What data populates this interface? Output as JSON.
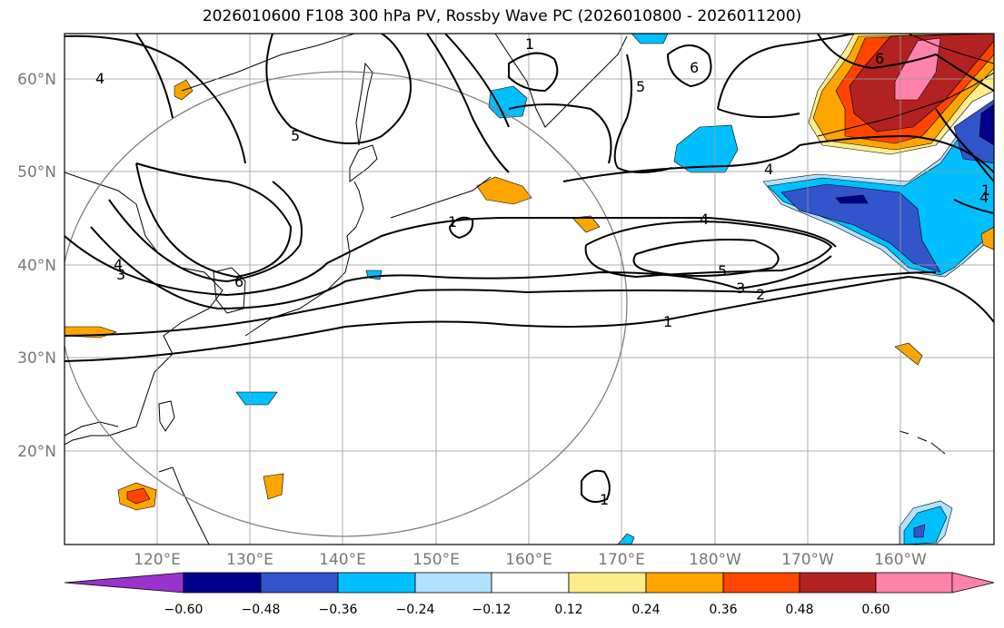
{
  "title": "2026010600 F108 300 hPa PV, Rossby Wave PC (2026010800 - 2026011200)",
  "map": {
    "lon_range": [
      110,
      210
    ],
    "lat_range": [
      10,
      65
    ],
    "x_ticks": [
      "120°E",
      "130°E",
      "140°E",
      "150°E",
      "160°E",
      "170°E",
      "180°W",
      "170°W",
      "160°W"
    ],
    "y_ticks": [
      "20°N",
      "30°N",
      "40°N",
      "50°N",
      "60°N"
    ],
    "grid": true,
    "contour_labels": [
      "4",
      "1",
      "5",
      "6",
      "1",
      "5",
      "4",
      "6",
      "4",
      "5",
      "3",
      "2",
      "1",
      "1",
      "4",
      "3",
      "6",
      "1",
      "4"
    ],
    "shading_colors": {
      "purple": "#9933cc",
      "navy": "#00008b",
      "royal": "#3355cc",
      "deepsky": "#00bfff",
      "lightsky": "#b0e2ff",
      "white": "#ffffff",
      "lightyellow": "#ffec8b",
      "orange": "#ffa500",
      "orangered": "#ff4500",
      "firebrick": "#b22222",
      "pink": "#ff82ab"
    }
  },
  "colorbar": {
    "labels": [
      "−0.60",
      "−0.48",
      "−0.36",
      "−0.24",
      "−0.12",
      "0.12",
      "0.24",
      "0.36",
      "0.48",
      "0.60"
    ],
    "colors": [
      "#9933cc",
      "#00008b",
      "#3355cc",
      "#00bfff",
      "#b0e2ff",
      "#ffffff",
      "#ffec8b",
      "#ffa500",
      "#ff4500",
      "#b22222",
      "#ff82ab"
    ]
  }
}
